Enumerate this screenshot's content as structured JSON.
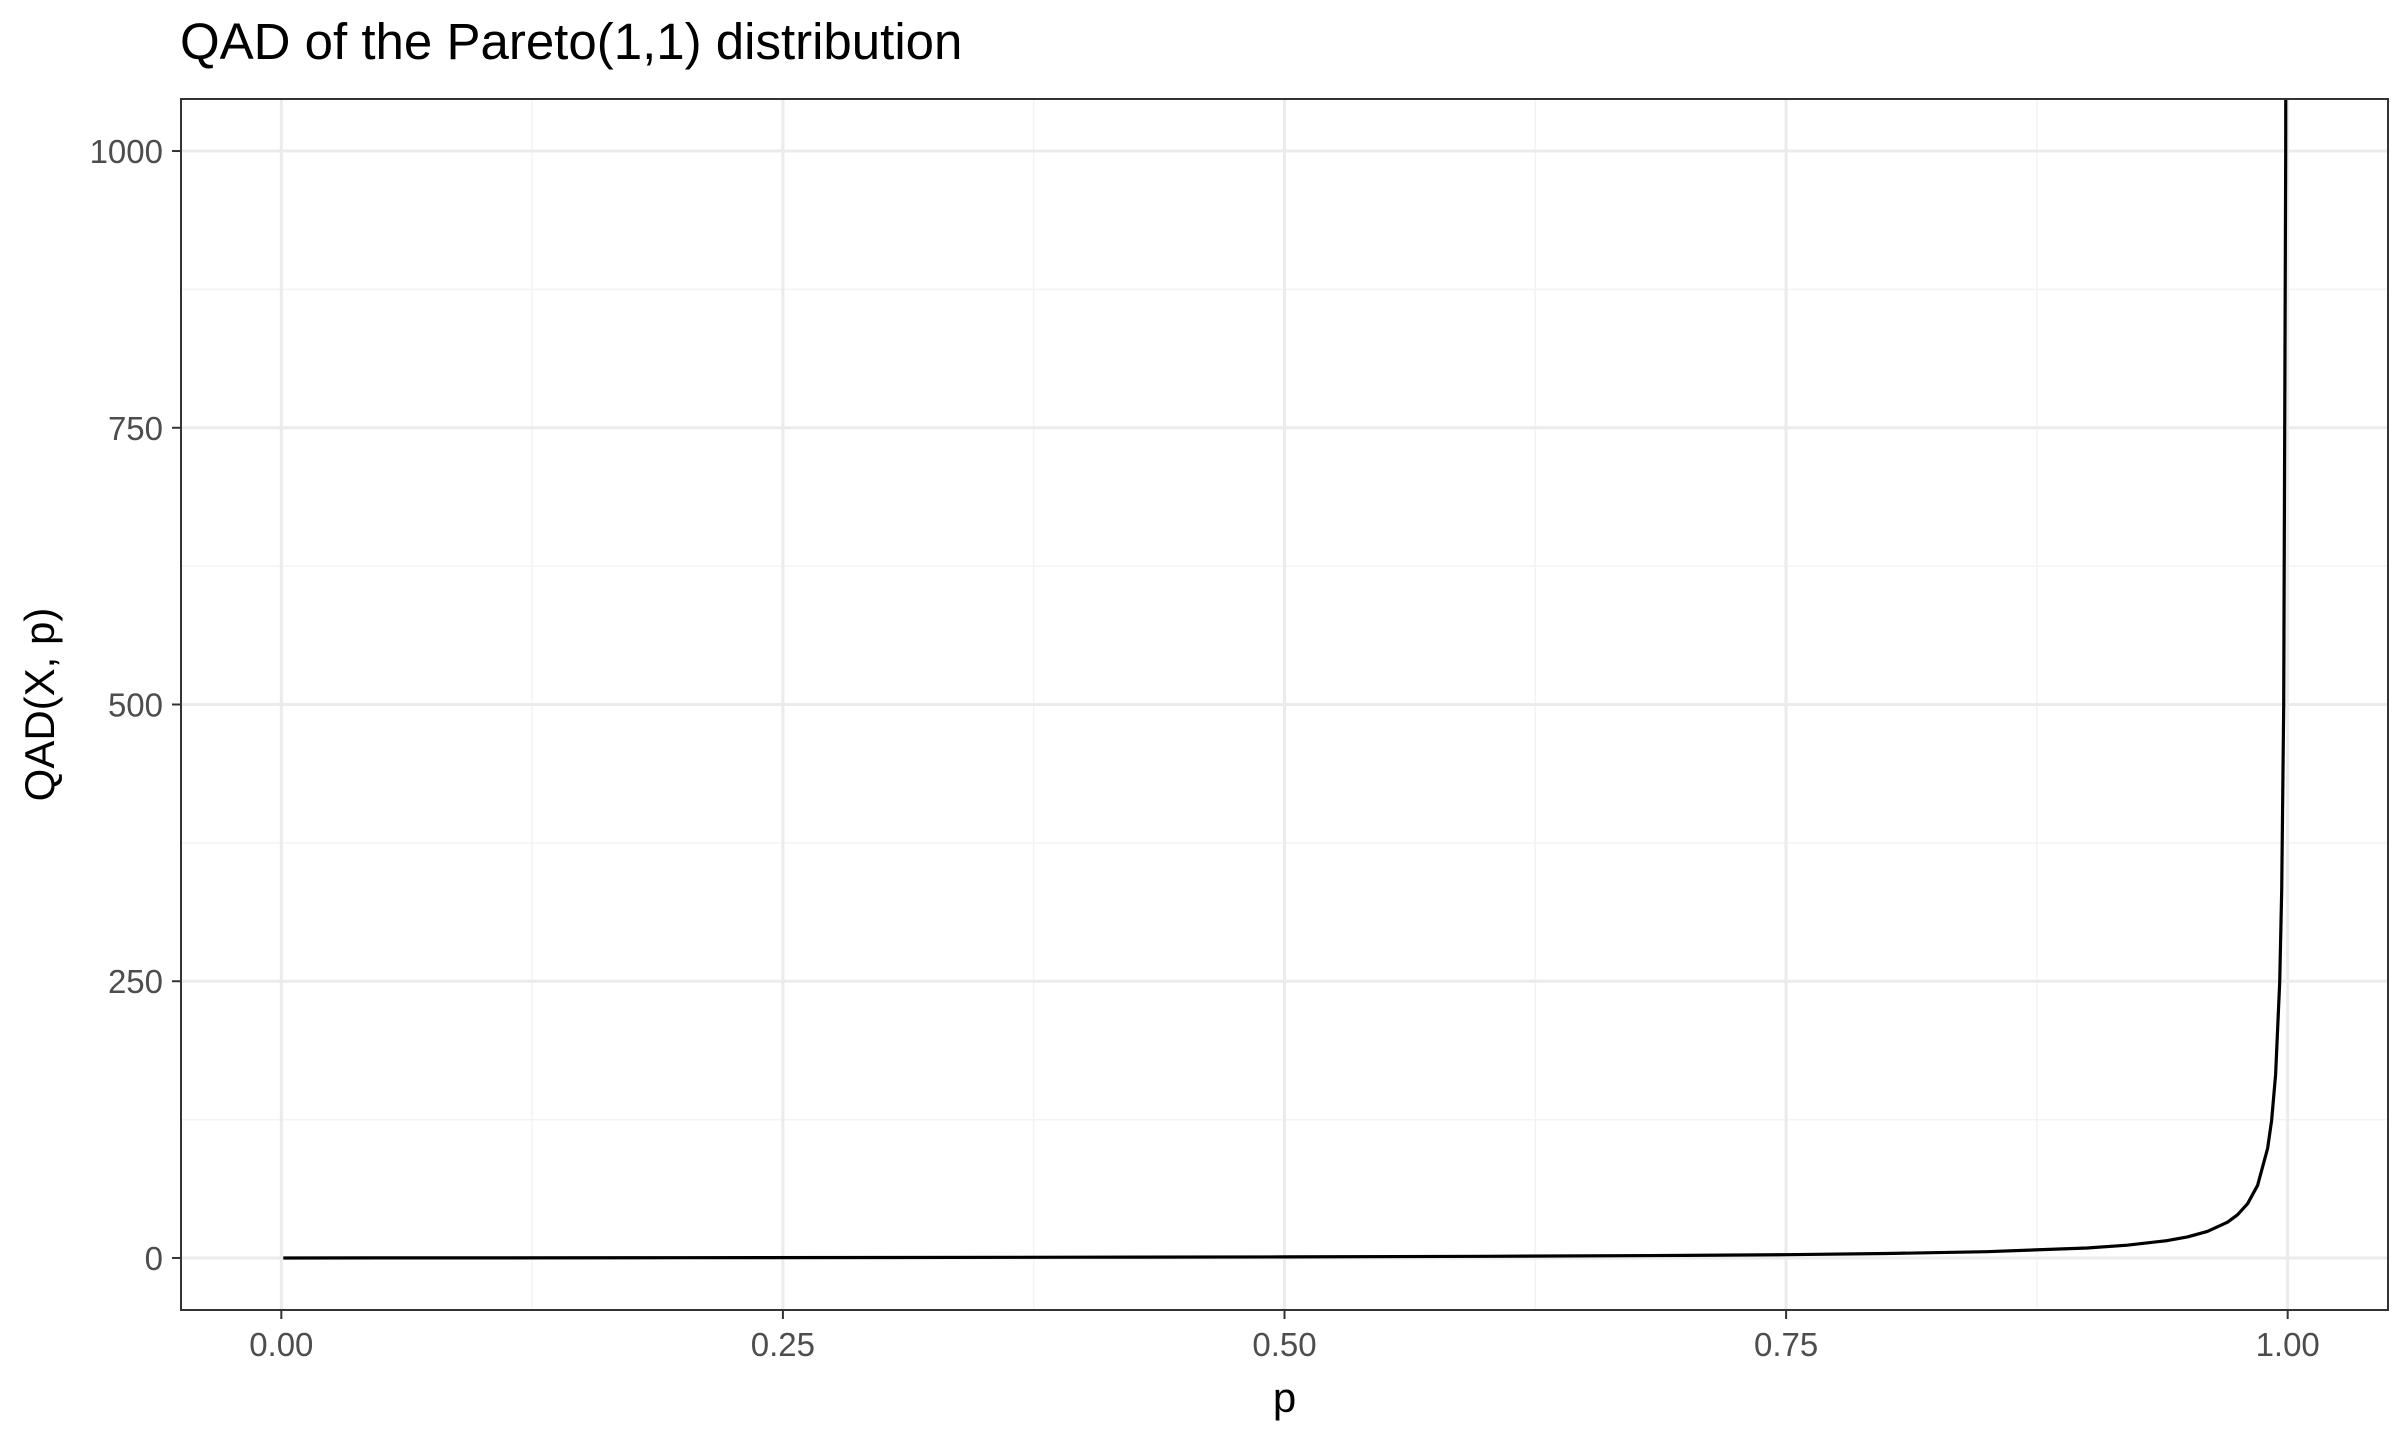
{
  "chart_data": {
    "type": "line",
    "title": "QAD of the Pareto(1,1) distribution",
    "xlabel": "p",
    "ylabel": "QAD(X, p)",
    "xlim": [
      -0.05,
      1.05
    ],
    "ylim": [
      -47,
      1047
    ],
    "xticks": [
      0,
      0.25,
      0.5,
      0.75,
      1
    ],
    "xtick_labels": [
      "0.00",
      "0.25",
      "0.50",
      "0.75",
      "1.00"
    ],
    "yticks": [
      0,
      250,
      500,
      750,
      1000
    ],
    "ytick_labels": [
      "0",
      "250",
      "500",
      "750",
      "1000"
    ],
    "x_minor_grid": [
      0.125,
      0.375,
      0.625,
      0.875
    ],
    "y_minor_grid": [
      125,
      375,
      625,
      875
    ],
    "grid": true,
    "legend": "none",
    "series": [
      {
        "x": [
          0.001,
          0.05,
          0.1,
          0.2,
          0.3,
          0.4,
          0.5,
          0.6,
          0.7,
          0.75,
          0.8,
          0.85,
          0.9,
          0.92,
          0.94,
          0.95,
          0.96,
          0.97,
          0.975,
          0.98,
          0.985,
          0.99,
          0.992,
          0.994,
          0.996,
          0.997,
          0.998,
          0.999,
          0.9995
        ],
        "y": [
          0.0,
          0.05,
          0.11,
          0.25,
          0.43,
          0.67,
          1.0,
          1.5,
          2.33,
          3.0,
          4.0,
          5.67,
          9.0,
          11.5,
          15.67,
          19.0,
          24.0,
          32.33,
          39.0,
          49.0,
          65.67,
          99.0,
          124.0,
          165.67,
          249.0,
          332.33,
          499.0,
          999.0,
          1999.0
        ]
      }
    ],
    "colors": {
      "line": "#000000",
      "grid_major": "#ebebeb",
      "grid_minor": "#f3f3f3",
      "panel_border": "#333333",
      "tick_label": "#4d4d4d"
    }
  }
}
